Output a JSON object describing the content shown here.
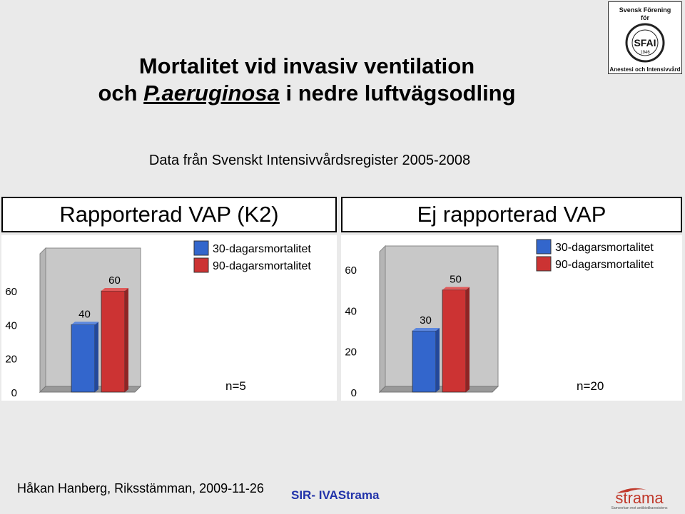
{
  "title": {
    "line1": "Mortalitet vid invasiv ventilation",
    "line2_prefix": "och ",
    "line2_italic": "P.aeruginosa",
    "line2_suffix": " i nedre luftvägsodling"
  },
  "subtitle": "Data från Svenskt Intensivvårdsregister 2005-2008",
  "logo_top": {
    "line1": "Svensk Förening",
    "line2": "för",
    "seal": "SFAI",
    "year": "1946",
    "caption": "Anestesi och Intensivvård"
  },
  "footer": {
    "author": "Håkan Hanberg, Riksstämman, 2009-11-26",
    "center": "SIR- IVAStrama",
    "logo_text": "strama",
    "logo_sub": "Samverkan mot antibiotikaresistens"
  },
  "colors": {
    "series1": "#3366cc",
    "series2": "#cc3333",
    "footer_center": "#2233aa",
    "strama": "#c0392b"
  },
  "chart_data": [
    {
      "type": "bar",
      "title": "Rapporterad VAP (K2)",
      "categories": [
        ""
      ],
      "series": [
        {
          "name": "30-dagarsmortalitet",
          "values": [
            40
          ]
        },
        {
          "name": "90-dagarsmortalitet",
          "values": [
            60
          ]
        }
      ],
      "ylim": [
        0,
        70
      ],
      "yticks": [
        0,
        20,
        40,
        60
      ],
      "legend": "top-right",
      "note": "n=5"
    },
    {
      "type": "bar",
      "title": "Ej rapporterad VAP",
      "categories": [
        ""
      ],
      "series": [
        {
          "name": "30-dagarsmortalitet",
          "values": [
            30
          ]
        },
        {
          "name": "90-dagarsmortalitet",
          "values": [
            50
          ]
        }
      ],
      "ylim": [
        0,
        70
      ],
      "yticks": [
        0,
        20,
        40,
        60
      ],
      "legend": "top-right",
      "note": "n=20"
    }
  ]
}
